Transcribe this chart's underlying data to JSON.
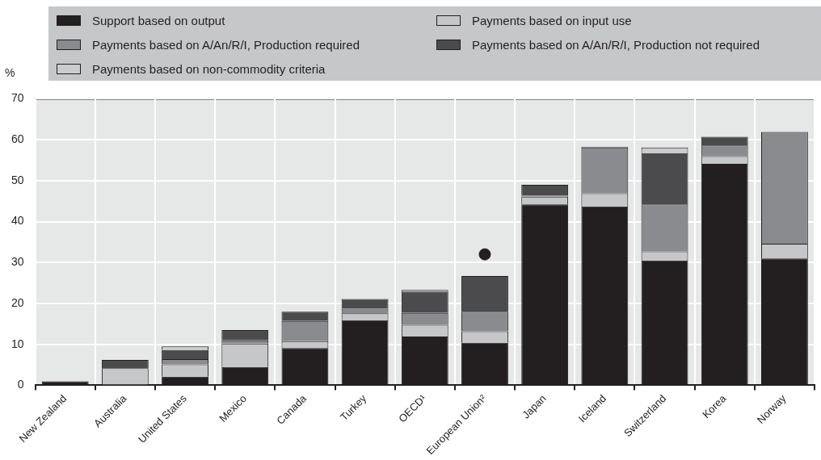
{
  "chart_data": {
    "type": "bar",
    "stacked": true,
    "ylabel": "%",
    "legend": "top",
    "grid": true,
    "marker": "circle",
    "categories": [
      "New Zealand",
      "Australia",
      "United States",
      "Mexico",
      "Canada",
      "Turkey",
      "OECD¹",
      "European Union²",
      "Japan",
      "Iceland",
      "Switzerland",
      "Korea",
      "Norway"
    ],
    "ylim": [
      0,
      70
    ],
    "yticks": [
      0,
      10,
      20,
      30,
      40,
      50,
      60,
      70
    ],
    "series": [
      {
        "name": "Support based on output",
        "color": "#231f20",
        "values": [
          1.0,
          0,
          2.1,
          4.5,
          9.1,
          15.9,
          11.9,
          10.4,
          44.2,
          43.7,
          30.5,
          54.1,
          31.0
        ]
      },
      {
        "name": "Payments based on input use",
        "color": "#c6c7c9",
        "values": [
          0,
          4.2,
          3.0,
          5.7,
          1.7,
          1.7,
          2.9,
          2.8,
          1.9,
          3.2,
          2.2,
          1.9,
          3.6
        ]
      },
      {
        "name": "Payments based on A/An/R/I, Production required",
        "color": "#8a8b8e",
        "values": [
          0,
          0,
          1.3,
          0.8,
          4.9,
          1.1,
          2.9,
          4.8,
          0.2,
          11.2,
          11.5,
          2.6,
          27.3
        ]
      },
      {
        "name": "Payments based on A/An/R/I, Production not required",
        "color": "#4b4b4d",
        "values": [
          0,
          2.0,
          2.2,
          2.5,
          2.3,
          2.4,
          5.2,
          8.7,
          2.7,
          0.2,
          12.5,
          2.1,
          0
        ]
      },
      {
        "name": "Payments based on non-commodity criteria",
        "color": "#cbcccd",
        "values": [
          0,
          0,
          0.9,
          0,
          0,
          0,
          0.4,
          0,
          0,
          0,
          1.4,
          0,
          0
        ]
      },
      {
        "type": "scatter",
        "color": "#231f20",
        "x": [
          "European Union²"
        ],
        "values": [
          32
        ]
      }
    ]
  }
}
